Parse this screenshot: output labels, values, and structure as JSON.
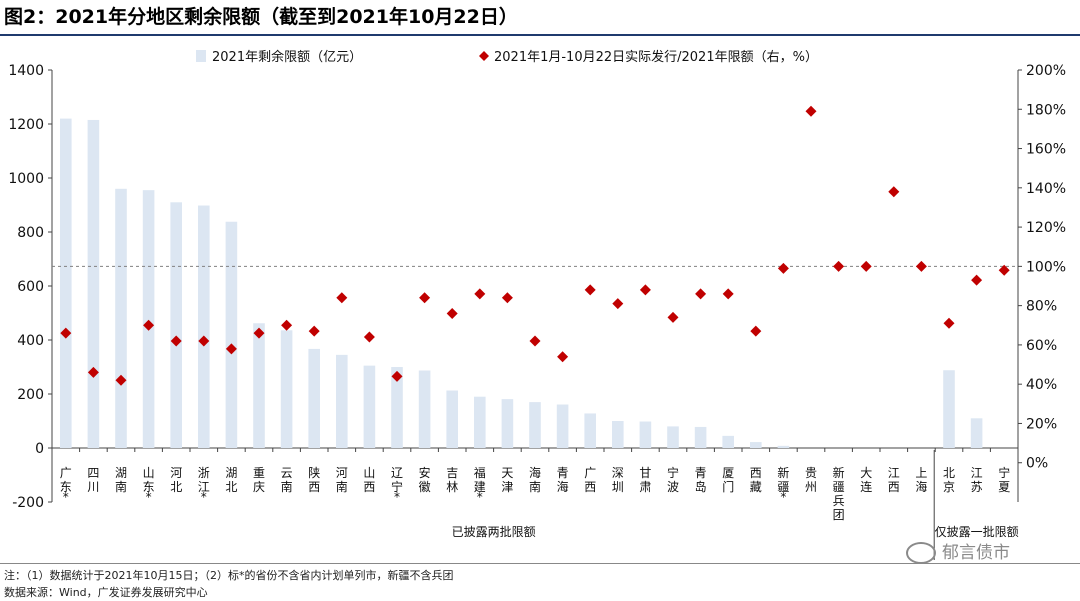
{
  "title": "图2：2021年分地区剩余限额（截至到2021年10月22日）",
  "notes": {
    "line1": "注：（1）数据统计于2021年10月15日；（2）标*的省份不含省内计划单列市，新疆不含兵团",
    "line2": "数据来源：Wind，广发证券发展研究中心"
  },
  "watermark": "郁言债市",
  "colors": {
    "bar": "#dce6f2",
    "marker": "#c00000",
    "reference_line": "#808080"
  },
  "chart_data": {
    "type": "bar",
    "legend": {
      "position": "top",
      "bar_label": "2021年剩余限额（亿元）",
      "marker_label": "2021年1月-10月22日实际发行/2021年限额（右，%）"
    },
    "categories": [
      "广东*",
      "四川",
      "湖南",
      "山东*",
      "河北",
      "浙江*",
      "湖北",
      "重庆",
      "云南",
      "陕西",
      "河南",
      "山西",
      "辽宁*",
      "安徽",
      "吉林",
      "福建*",
      "天津",
      "海南",
      "青海",
      "广西",
      "深圳",
      "甘肃",
      "宁波",
      "青岛",
      "厦门",
      "西藏",
      "新疆*",
      "贵州",
      "新疆兵团",
      "大连",
      "江西",
      "上海",
      "北京",
      "江苏",
      "宁夏"
    ],
    "series": [
      {
        "name": "2021年剩余限额（亿元）",
        "axis": "left",
        "type": "bar",
        "values": [
          1220,
          1215,
          960,
          955,
          910,
          898,
          838,
          462,
          436,
          367,
          345,
          305,
          300,
          287,
          213,
          190,
          181,
          170,
          161,
          128,
          100,
          98,
          80,
          78,
          45,
          22,
          8,
          0,
          0,
          0,
          0,
          0,
          288,
          110,
          0
        ]
      },
      {
        "name": "2021年1月-10月22日实际发行/2021年限额（右，%）",
        "axis": "right",
        "type": "scatter",
        "values": [
          66,
          46,
          42,
          70,
          62,
          62,
          58,
          66,
          70,
          67,
          84,
          64,
          44,
          84,
          76,
          86,
          84,
          62,
          54,
          88,
          81,
          88,
          74,
          86,
          86,
          67,
          99,
          179,
          100,
          100,
          138,
          100,
          71,
          93,
          98
        ]
      }
    ],
    "y_left": {
      "min": -200,
      "max": 1400,
      "ticks": [
        "-200",
        "0",
        "200",
        "400",
        "600",
        "800",
        "1000",
        "1200",
        "1400"
      ]
    },
    "y_right": {
      "min": -20,
      "max": 200,
      "ticks": [
        "0%",
        "20%",
        "40%",
        "60%",
        "80%",
        "100%",
        "120%",
        "140%",
        "160%",
        "180%",
        "200%"
      ]
    },
    "reference_line": {
      "axis": "right",
      "value": 100
    },
    "groups": [
      {
        "label": "已披露两批限额",
        "from": 0,
        "to": 31
      },
      {
        "label": "仅披露一批限额",
        "from": 32,
        "to": 34
      }
    ],
    "grid": false
  }
}
